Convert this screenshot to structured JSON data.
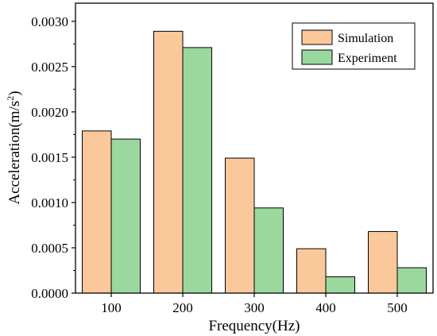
{
  "chart_data": {
    "type": "bar",
    "xlabel": "Frequency(Hz)",
    "ylabel_main": "Acceleration(m/s",
    "ylabel_sup": "2",
    "ylabel_close": ")",
    "categories": [
      "100",
      "200",
      "300",
      "400",
      "500"
    ],
    "series": [
      {
        "name": "Simulation",
        "values": [
          0.00179,
          0.00289,
          0.00149,
          0.00049,
          0.00068
        ],
        "color": "#FBC89B"
      },
      {
        "name": "Experiment",
        "values": [
          0.0017,
          0.00271,
          0.00094,
          0.00018,
          0.00028
        ],
        "color": "#9BD89E"
      }
    ],
    "ylim": [
      0,
      0.0032
    ],
    "yticks": [
      "0.0000",
      "0.0005",
      "0.0010",
      "0.0015",
      "0.0020",
      "0.0025",
      "0.0030"
    ],
    "ytick_values": [
      0,
      0.0005,
      0.001,
      0.0015,
      0.002,
      0.0025,
      0.003
    ],
    "legend_position": "top-right",
    "grid": false
  }
}
